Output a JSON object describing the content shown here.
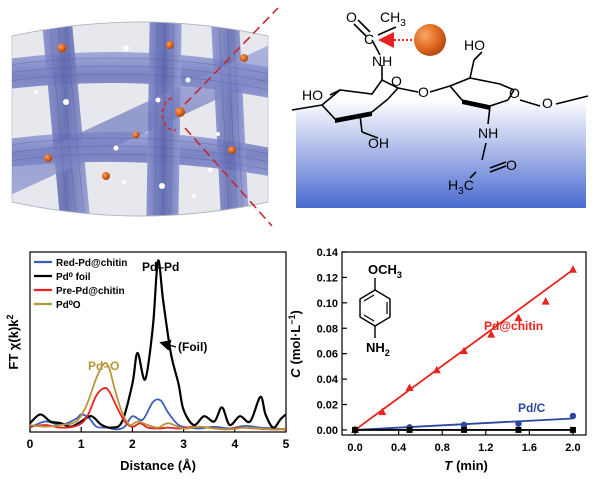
{
  "structure": {
    "ch3_label": "CH",
    "ch3_sub": "3",
    "o_carbonyl_top": "O",
    "c_top": "C",
    "nh_top": "NH",
    "ho_top_right": "HO",
    "ho_left": "HO",
    "o_ring_left": "O",
    "o_bridge": "O",
    "o_ring_right": "O",
    "oh_bottom_left": "OH",
    "nh_bottom": "NH",
    "o_carbonyl_bottom": "O",
    "c_bottom": "C",
    "h3c_label": "H",
    "h3c_sub": "3",
    "h3c_c": "C"
  },
  "exafs_panel": {
    "ylabel_main": "FT χ(k)k",
    "ylabel_sup": "2",
    "annotations": {
      "pd_pd": "Pd–Pd",
      "pd_o": "Pd–O",
      "foil": "(Foil)"
    }
  },
  "kinetics_panel": {
    "structure": {
      "och3": "OCH",
      "och3_sub": "3",
      "nh2": "NH",
      "nh2_sub": "2"
    },
    "ylabel_c": "C",
    "ylabel_units": "(mol·L",
    "ylabel_sup": "−1",
    "ylabel_close": ")",
    "xlabel_t": "T",
    "xlabel_units": "(min)"
  },
  "colors": {
    "red_pd_chitin": "#3a5fb8",
    "pd0_foil": "#000000",
    "pre_pd_chitin": "#e8221c",
    "pd0_o": "#b8953c",
    "pd_chitin_line": "#e8221c",
    "pd_c_line": "#2a48a0",
    "blank_line": "#000000",
    "nanoparticle": "#d9621c",
    "fiber": "#7b86c7",
    "substrate_top": "#ffffff",
    "substrate_bottom": "#4a6ad0"
  },
  "chart_data": [
    {
      "type": "line",
      "xlabel": "Distance (Å)",
      "ylabel": "FT χ(k)k²",
      "xlim": [
        0,
        5
      ],
      "x_ticks": [
        "0",
        "1",
        "2",
        "3",
        "4",
        "5"
      ],
      "legend_position": "top-left",
      "series": [
        {
          "name": "Red-Pd@chitin",
          "x": [
            0,
            0.3,
            0.6,
            0.9,
            1.0,
            1.15,
            1.3,
            1.5,
            1.7,
            1.85,
            2.0,
            2.2,
            2.4,
            2.55,
            2.7,
            2.9,
            3.1,
            3.3,
            3.6,
            3.9,
            4.2,
            4.5,
            4.8,
            5.0
          ],
          "y": [
            0.05,
            0.12,
            0.08,
            0.15,
            0.2,
            0.16,
            0.06,
            0.05,
            0.03,
            0.06,
            0.18,
            0.14,
            0.34,
            0.36,
            0.22,
            0.08,
            0.05,
            0.04,
            0.06,
            0.04,
            0.07,
            0.05,
            0.04,
            0.03
          ]
        },
        {
          "name": "Pd⁰ foil",
          "x": [
            0,
            0.2,
            0.4,
            0.6,
            0.8,
            1.0,
            1.2,
            1.4,
            1.6,
            1.8,
            2.0,
            2.1,
            2.25,
            2.4,
            2.5,
            2.6,
            2.75,
            2.9,
            3.0,
            3.2,
            3.4,
            3.6,
            3.75,
            3.9,
            4.1,
            4.3,
            4.5,
            4.6,
            4.75,
            4.9,
            5.0
          ],
          "y": [
            0.1,
            0.2,
            0.12,
            0.1,
            0.06,
            0.12,
            0.18,
            0.08,
            0.05,
            0.12,
            0.55,
            0.9,
            0.6,
            1.2,
            1.95,
            1.5,
            0.9,
            0.55,
            0.25,
            0.08,
            0.18,
            0.12,
            0.28,
            0.08,
            0.18,
            0.12,
            0.4,
            0.2,
            0.05,
            0.15,
            0.2
          ]
        },
        {
          "name": "Pre-Pd@chitin",
          "x": [
            0,
            0.3,
            0.6,
            0.9,
            1.1,
            1.3,
            1.45,
            1.55,
            1.7,
            1.85,
            2.0,
            2.15,
            2.3,
            2.5,
            2.7,
            2.9,
            3.2,
            3.5,
            3.8,
            4.1,
            4.4,
            4.7,
            5.0
          ],
          "y": [
            0.06,
            0.08,
            0.05,
            0.07,
            0.16,
            0.42,
            0.5,
            0.46,
            0.28,
            0.12,
            0.06,
            0.1,
            0.05,
            0.04,
            0.05,
            0.04,
            0.06,
            0.05,
            0.03,
            0.05,
            0.04,
            0.03,
            0.03
          ]
        },
        {
          "name": "Pd⁰O",
          "x": [
            0,
            0.3,
            0.6,
            0.9,
            1.1,
            1.3,
            1.45,
            1.55,
            1.65,
            1.8,
            1.95,
            2.1,
            2.3,
            2.5,
            2.7,
            3.0,
            3.3,
            3.6,
            3.9,
            4.2,
            4.5,
            4.8,
            5.0
          ],
          "y": [
            0.08,
            0.06,
            0.08,
            0.12,
            0.3,
            0.62,
            0.78,
            0.72,
            0.5,
            0.22,
            0.08,
            0.12,
            0.08,
            0.05,
            0.1,
            0.04,
            0.06,
            0.04,
            0.03,
            0.05,
            0.04,
            0.03,
            0.04
          ]
        }
      ]
    },
    {
      "type": "scatter",
      "xlabel": "T (min)",
      "ylabel": "C (mol·L⁻¹)",
      "xlim": [
        0,
        2.0
      ],
      "ylim": [
        0,
        0.14
      ],
      "x_ticks": [
        "0.0",
        "0.4",
        "0.8",
        "1.2",
        "1.6",
        "2.0"
      ],
      "y_ticks": [
        "0.00",
        "0.02",
        "0.04",
        "0.06",
        "0.08",
        "0.10",
        "0.12",
        "0.14"
      ],
      "grid": false,
      "series": [
        {
          "name": "Pd@chitin",
          "marker": "triangle",
          "x": [
            0,
            0.25,
            0.5,
            0.75,
            1.0,
            1.25,
            1.5,
            1.75,
            2.0
          ],
          "y": [
            0.0,
            0.014,
            0.033,
            0.047,
            0.062,
            0.075,
            0.088,
            0.101,
            0.126
          ],
          "fit": [
            [
              0,
              0.0
            ],
            [
              2.0,
              0.126
            ]
          ]
        },
        {
          "name": "Pd/C",
          "marker": "circle",
          "x": [
            0,
            0.5,
            1.0,
            1.5,
            2.0
          ],
          "y": [
            0.0,
            0.002,
            0.004,
            0.005,
            0.011
          ],
          "fit": [
            [
              0,
              0.0
            ],
            [
              2.0,
              0.009
            ]
          ]
        },
        {
          "marker": "square",
          "x": [
            0,
            0.5,
            1.0,
            1.5,
            2.0
          ],
          "y": [
            0.0,
            0.0,
            0.0,
            0.0,
            0.0
          ],
          "fit": [
            [
              0,
              0.0
            ],
            [
              2.0,
              0.0
            ]
          ]
        }
      ]
    }
  ]
}
